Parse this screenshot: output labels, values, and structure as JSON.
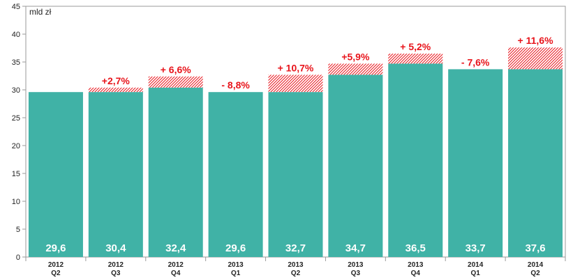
{
  "chart_data": {
    "type": "bar",
    "unit_label": "mld zł",
    "categories": [
      {
        "year": "2012",
        "quarter": "Q2"
      },
      {
        "year": "2012",
        "quarter": "Q3"
      },
      {
        "year": "2012",
        "quarter": "Q4"
      },
      {
        "year": "2013",
        "quarter": "Q1"
      },
      {
        "year": "2013",
        "quarter": "Q2"
      },
      {
        "year": "2013",
        "quarter": "Q3"
      },
      {
        "year": "2013",
        "quarter": "Q4"
      },
      {
        "year": "2014",
        "quarter": "Q1"
      },
      {
        "year": "2014",
        "quarter": "Q2"
      }
    ],
    "values": [
      29.6,
      30.4,
      32.4,
      29.6,
      32.7,
      34.7,
      36.5,
      33.7,
      37.6
    ],
    "value_labels": [
      "29,6",
      "30,4",
      "32,4",
      "29,6",
      "32,7",
      "34,7",
      "36,5",
      "33,7",
      "37,6"
    ],
    "base_values": [
      29.6,
      29.6,
      30.4,
      29.6,
      29.6,
      32.7,
      34.7,
      33.7,
      33.7
    ],
    "change_labels": [
      "",
      "+2,7%",
      "+ 6,6%",
      "- 8,8%",
      "+ 10,7%",
      "+5,9%",
      "+ 5,2%",
      "- 7,6%",
      "+ 11,6%"
    ],
    "ylim": [
      0,
      45
    ],
    "yticks": [
      0,
      5,
      10,
      15,
      20,
      25,
      30,
      35,
      40,
      45
    ],
    "grid": false,
    "colors": {
      "bar": "#40b2a6",
      "increase_hatch": "#e8141b",
      "change_text": "#e8141b",
      "value_text": "#ffffff"
    }
  }
}
